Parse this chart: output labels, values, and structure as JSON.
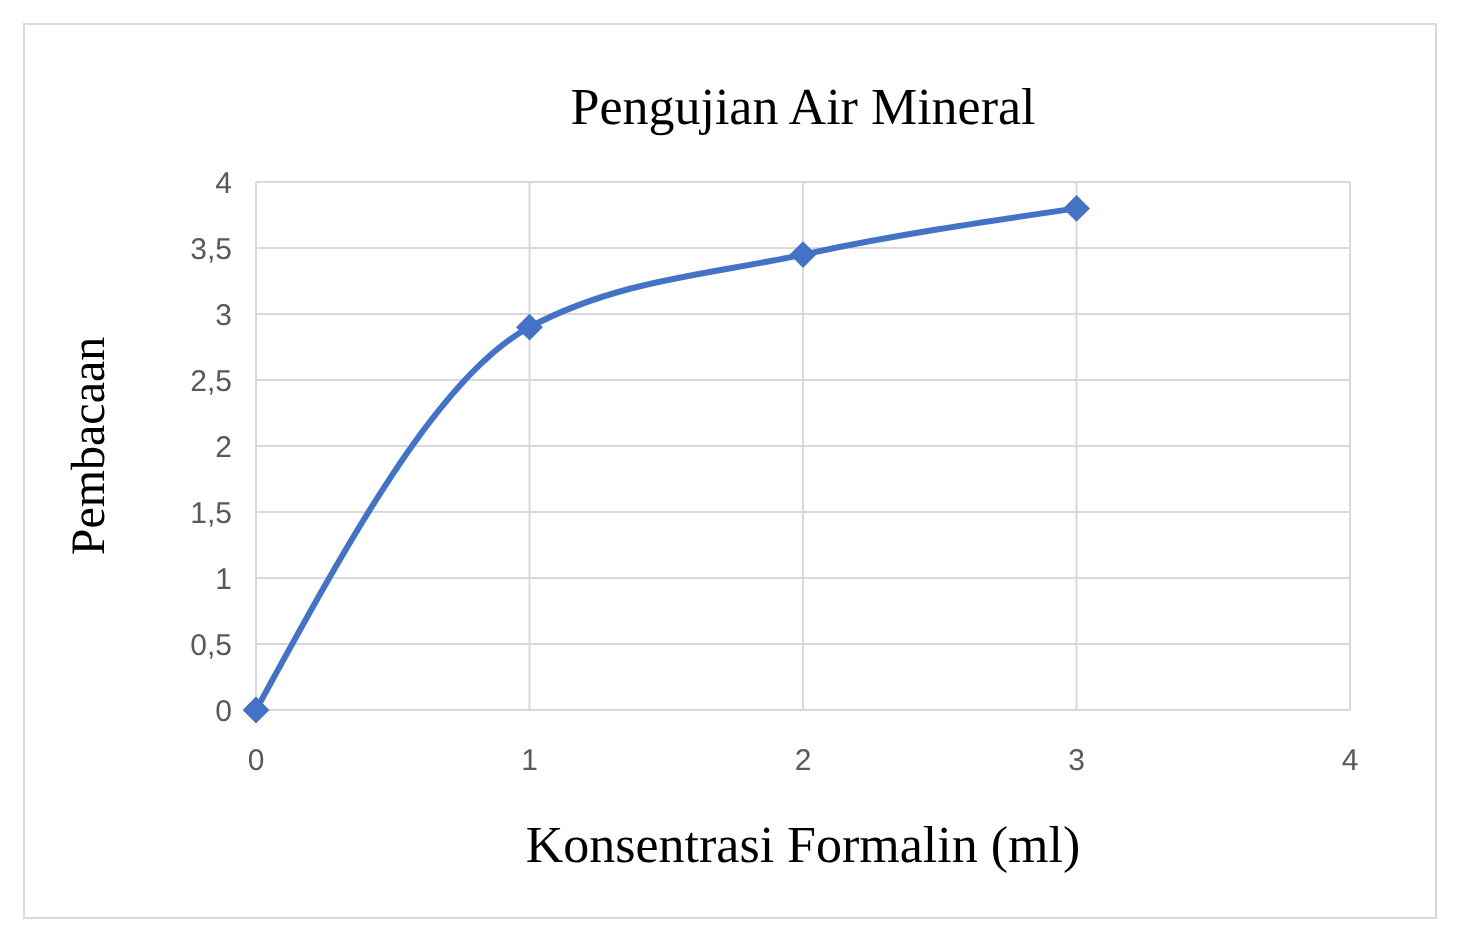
{
  "chart_data": {
    "type": "line",
    "title": "Pengujian Air Mineral",
    "xlabel": "Konsentrasi Formalin (ml)",
    "ylabel": "Pembacaan",
    "x": [
      0,
      1,
      2,
      3
    ],
    "series": [
      {
        "color": "#4472c4",
        "values": [
          0,
          2.9,
          3.45,
          3.8
        ]
      }
    ],
    "xlim": [
      0,
      4
    ],
    "xticks": [
      0,
      1,
      2,
      3,
      4
    ],
    "ylim": [
      0,
      4
    ],
    "yticks": [
      0,
      {
        "value": 0.5,
        "label": "0,5"
      },
      1,
      {
        "value": 1.5,
        "label": "1,5"
      },
      2,
      {
        "value": 2.5,
        "label": "2,5"
      },
      3,
      {
        "value": 3.5,
        "label": "3,5"
      },
      4
    ],
    "grid": true,
    "marker": "diamond",
    "line_style": "solid"
  }
}
